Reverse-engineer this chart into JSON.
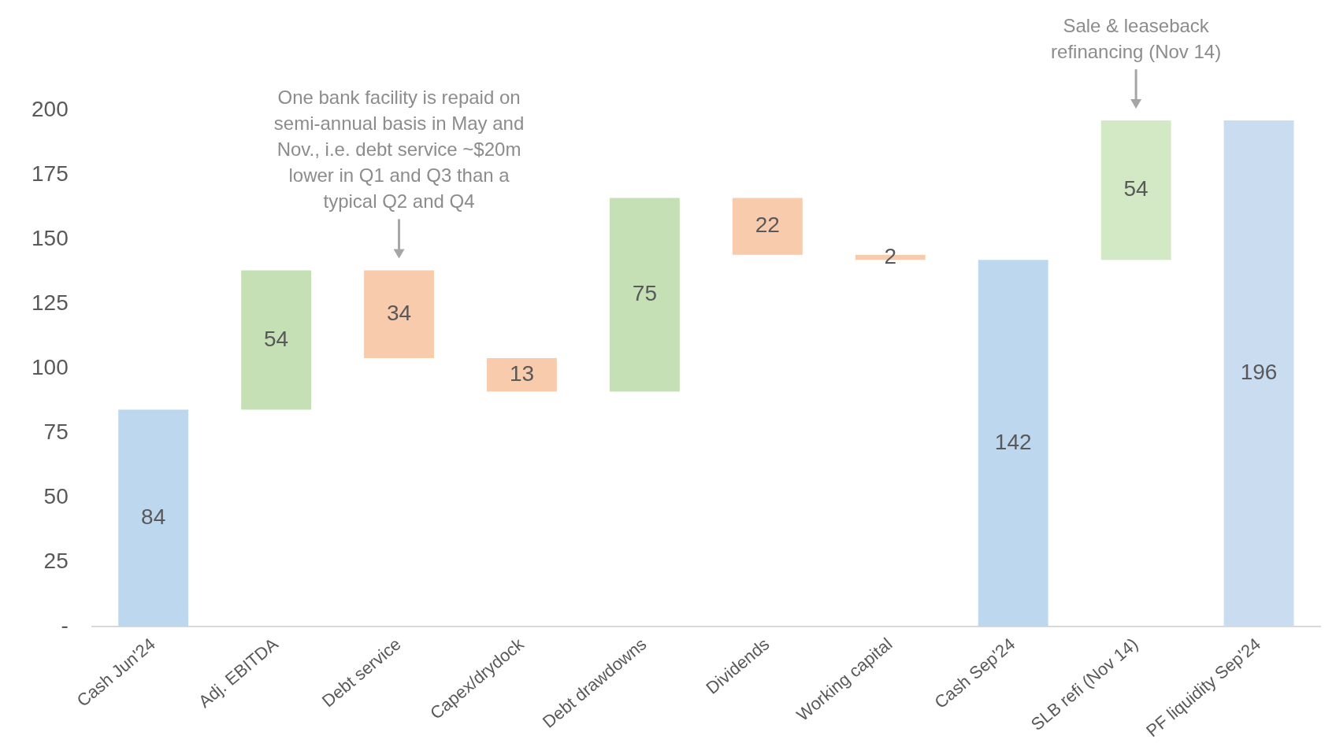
{
  "chart_data": {
    "type": "bar",
    "categories": [
      "Cash Jun'24",
      "Adj. EBITDA",
      "Debt service",
      "Capex/drydock",
      "Debt drawdowns",
      "Dividends",
      "Working capital",
      "Cash Sep'24",
      "SLB refi (Nov 14)",
      "PF liquidity Sep'24"
    ],
    "values": [
      84,
      54,
      34,
      13,
      75,
      22,
      2,
      142,
      54,
      196
    ],
    "base": [
      0,
      84,
      104,
      91,
      91,
      144,
      142,
      0,
      142,
      0
    ],
    "colors": [
      "#bdd7ee",
      "#c5e0b4",
      "#f8cbad",
      "#f8cbad",
      "#c5e0b4",
      "#f8cbad",
      "#f8cbad",
      "#bdd7ee",
      "#d3e8c4",
      "#c9dcf0"
    ],
    "ylim": [
      0,
      200
    ],
    "yticks": [
      {
        "value": 0,
        "label": "-"
      },
      25,
      50,
      75,
      100,
      125,
      150,
      175,
      200
    ],
    "data_labels": true,
    "grid": false,
    "annotations": [
      "One bank facility is repaid on semi-annual basis in May and Nov., i.e. debt service ~$20m lower in Q1 and Q3 than a typical Q2 and Q4",
      "Sale & leaseback refinancing (Nov 14)"
    ]
  }
}
